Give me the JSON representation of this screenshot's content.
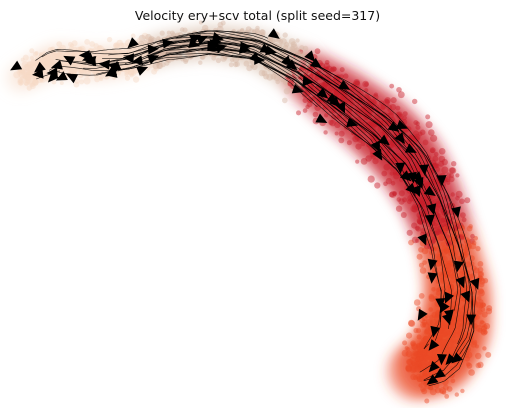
{
  "figure": {
    "title": "Velocity ery+scv total (split seed=317)"
  },
  "colors": {
    "background": "#ffffff",
    "cluster_pale": "#f7d9c6",
    "cluster_tan": "#d6b9a6",
    "cluster_red": "#c8202a",
    "cluster_orange": "#ec4a25",
    "streamline": "#000000"
  },
  "icons": [
    "arrowhead-icon"
  ]
}
